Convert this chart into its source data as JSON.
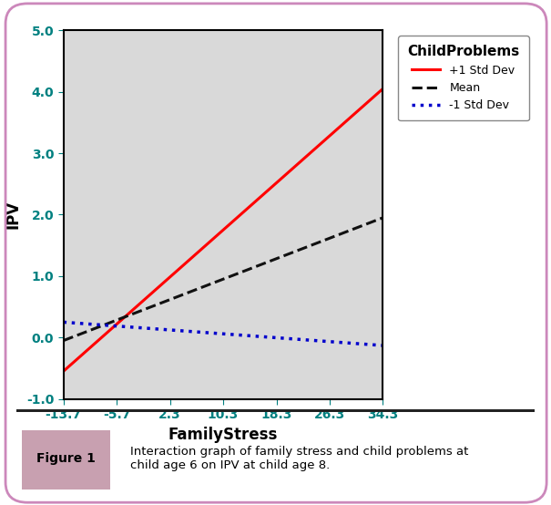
{
  "x_ticks": [
    -13.7,
    -5.7,
    2.3,
    10.3,
    18.3,
    26.3,
    34.3
  ],
  "x_min": -13.7,
  "x_max": 34.3,
  "y_min": -1.0,
  "y_max": 5.0,
  "y_ticks": [
    -1.0,
    0.0,
    1.0,
    2.0,
    3.0,
    4.0,
    5.0
  ],
  "lines": {
    "plus1sd": {
      "label": "+1 Std Dev",
      "color": "#ff0000",
      "linestyle": "solid",
      "linewidth": 2.2,
      "x": [
        -13.7,
        34.3
      ],
      "y": [
        -0.55,
        4.05
      ]
    },
    "mean": {
      "label": "Mean",
      "color": "#111111",
      "linestyle": "dashed",
      "linewidth": 2.2,
      "x": [
        -13.7,
        34.3
      ],
      "y": [
        -0.05,
        1.95
      ]
    },
    "minus1sd": {
      "label": "-1 Std Dev",
      "color": "#0000cc",
      "linestyle": "dotted",
      "linewidth": 2.5,
      "x": [
        -13.7,
        34.3
      ],
      "y": [
        0.25,
        -0.13
      ]
    }
  },
  "xlabel": "FamilyStress",
  "ylabel": "IPV",
  "legend_title": "ChildProblems",
  "tick_color": "#008080",
  "plot_bg_color": "#d9d9d9",
  "figure_bg_color": "#ffffff",
  "outer_border_color": "#cc88bb",
  "caption_bg_color": "#c8a0b0",
  "caption_text": "Interaction graph of family stress and child problems at\nchild age 6 on IPV at child age 8.",
  "caption_label": "Figure 1",
  "axis_font_size": 10,
  "label_font_size": 12,
  "legend_title_font_size": 10,
  "legend_font_size": 9
}
